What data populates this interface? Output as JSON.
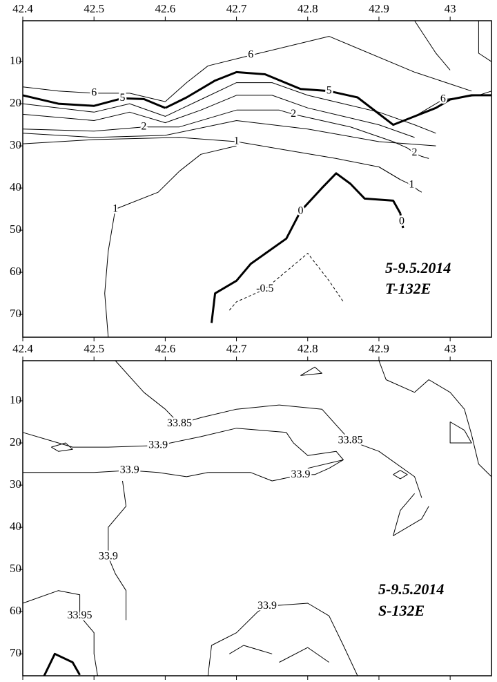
{
  "chart_data": [
    {
      "type": "contour",
      "xlim": [
        42.4,
        43.058
      ],
      "ylim": [
        0.3,
        75.4
      ],
      "xticks": [
        42.4,
        42.5,
        42.6,
        42.7,
        42.8,
        42.9,
        43
      ],
      "yticks": [
        10,
        20,
        30,
        40,
        50,
        60,
        70
      ],
      "color": "#000000",
      "annotations": [
        "5-9.5.2014",
        "T-132E"
      ],
      "contours": [
        {
          "label": "6",
          "x": [
            42.4,
            42.45,
            42.5,
            42.55,
            42.6
          ],
          "y": [
            16,
            17,
            17.5,
            17.5,
            19.5
          ]
        },
        {
          "label": "6",
          "x": [
            42.6,
            42.63,
            42.66,
            42.72,
            42.83,
            42.95,
            43.03
          ],
          "y": [
            19.5,
            15,
            11,
            8.5,
            4,
            12.5,
            17
          ]
        },
        {
          "label": "6",
          "x": [
            42.95,
            42.99,
            43.04,
            43.058
          ],
          "y": [
            23,
            19,
            18,
            17
          ]
        },
        {
          "label": "5",
          "style": "bold",
          "x": [
            42.4,
            42.45,
            42.5,
            42.54,
            42.57,
            42.59,
            42.6
          ],
          "y": [
            18,
            20,
            20.5,
            18.7,
            18.9,
            20.3,
            21
          ]
        },
        {
          "label": "5",
          "style": "bold",
          "x": [
            42.6,
            42.63,
            42.67,
            42.7,
            42.74,
            42.79,
            42.83,
            42.87,
            42.92,
            42.95,
            42.98,
            43.0,
            43.03,
            43.058
          ],
          "y": [
            21,
            18.5,
            14.5,
            12.5,
            13,
            16.5,
            17,
            18.5,
            25,
            23,
            21,
            19,
            18,
            18
          ]
        },
        {
          "x": [
            42.4,
            42.5,
            42.55,
            42.6,
            42.65,
            42.7,
            42.75,
            42.8,
            42.85,
            42.9,
            42.95,
            42.98
          ],
          "y": [
            20,
            22,
            20,
            23,
            19,
            15,
            15,
            18,
            20,
            22,
            25,
            27
          ]
        },
        {
          "x": [
            42.4,
            42.5,
            42.55,
            42.6,
            42.65,
            42.7,
            42.75,
            42.8,
            42.85,
            42.9,
            42.95
          ],
          "y": [
            22.5,
            24,
            22,
            24.5,
            21.5,
            18,
            18,
            21,
            23,
            25,
            28
          ]
        },
        {
          "label": "2",
          "x": [
            42.4,
            42.5,
            42.57,
            42.62,
            42.7
          ],
          "y": [
            26,
            26.5,
            25.5,
            25.5,
            21.5
          ]
        },
        {
          "label": "2",
          "x": [
            42.7,
            42.76,
            42.78,
            42.86,
            42.92
          ],
          "y": [
            21.5,
            21.5,
            22.5,
            25.5,
            29
          ]
        },
        {
          "label": "2",
          "x": [
            42.92,
            42.94,
            42.95,
            42.96,
            42.97
          ],
          "y": [
            29,
            30.5,
            31.7,
            32.5,
            33
          ]
        },
        {
          "x": [
            42.4,
            42.5,
            42.6,
            42.7,
            42.8,
            42.9,
            42.98
          ],
          "y": [
            27,
            28,
            27.5,
            24,
            26,
            29,
            30
          ]
        },
        {
          "label": "1",
          "x": [
            42.4,
            42.5,
            42.62,
            42.7,
            42.77,
            42.84,
            42.9,
            42.93
          ],
          "y": [
            29.5,
            28.5,
            28,
            29,
            31,
            33,
            35,
            38
          ]
        },
        {
          "label": "1",
          "x": [
            42.9,
            42.93,
            42.946,
            42.955,
            42.96
          ],
          "y": [
            35,
            38,
            39.3,
            40.5,
            41
          ]
        },
        {
          "label": "1",
          "x": [
            42.52,
            42.515,
            42.52,
            42.53,
            42.59,
            42.62,
            42.65,
            42.7
          ],
          "y": [
            75.4,
            65,
            55,
            45,
            41,
            36,
            32,
            30
          ]
        },
        {
          "label": "0",
          "style": "bold",
          "x": [
            42.665,
            42.67,
            42.7,
            42.72,
            42.77,
            42.79,
            42.82,
            42.84,
            42.86,
            42.88,
            42.92,
            42.93
          ],
          "y": [
            72,
            65,
            62,
            58,
            52,
            45.5,
            40,
            36.5,
            39,
            42.5,
            43,
            46
          ]
        },
        {
          "label": "0",
          "style": "bold",
          "x": [
            42.93,
            42.932,
            42.934
          ],
          "y": [
            46,
            48,
            49.5
          ]
        },
        {
          "label": "-0.5",
          "style": "dashed",
          "x": [
            42.69,
            42.7,
            42.74,
            42.8,
            42.83,
            42.85
          ],
          "y": [
            69,
            67,
            64,
            55.5,
            62,
            67
          ]
        },
        {
          "x": [
            42.95,
            42.98,
            43.0
          ],
          "y": [
            0.3,
            8,
            12
          ]
        },
        {
          "x": [
            43.04,
            43.04,
            43.058
          ],
          "y": [
            0.3,
            8,
            10
          ]
        }
      ]
    },
    {
      "type": "contour",
      "xlim": [
        42.4,
        43.058
      ],
      "ylim": [
        0.5,
        75.2
      ],
      "xticks": [
        42.4,
        42.5,
        42.6,
        42.7,
        42.8,
        42.9,
        43
      ],
      "yticks": [
        10,
        20,
        30,
        40,
        50,
        60,
        70
      ],
      "color": "#000000",
      "annotations": [
        "5-9.5.2014",
        "S-132E"
      ],
      "contours": [
        {
          "label": "33.85",
          "x": [
            42.53,
            42.57,
            42.6,
            42.62,
            42.65,
            42.7,
            42.76
          ],
          "y": [
            0.5,
            8,
            12,
            15.5,
            14,
            12,
            11
          ]
        },
        {
          "label": "33.85",
          "x": [
            42.76,
            42.82,
            42.86,
            42.9,
            42.95,
            42.96
          ],
          "y": [
            11,
            12,
            19.5,
            22,
            28,
            33
          ]
        },
        {
          "label": "33.9",
          "x": [
            42.4,
            42.47,
            42.52,
            42.59,
            42.65,
            42.7,
            42.77
          ],
          "y": [
            17.5,
            21,
            21,
            20.6,
            18.5,
            16.5,
            17.5
          ]
        },
        {
          "x": [
            42.77,
            42.78,
            42.8,
            42.84,
            42.85,
            42.8
          ],
          "y": [
            17.5,
            20,
            23,
            22,
            24,
            26
          ]
        },
        {
          "label": "33.9",
          "x": [
            42.4,
            42.5,
            42.55,
            42.59,
            42.63,
            42.66
          ],
          "y": [
            27,
            27,
            26.5,
            27,
            28,
            27
          ]
        },
        {
          "label": "33.9",
          "x": [
            42.66,
            42.72,
            42.75,
            42.79,
            42.81,
            42.83,
            42.85
          ],
          "y": [
            27,
            27,
            29,
            27.6,
            27.5,
            26,
            24
          ]
        },
        {
          "label": "33.9",
          "x": [
            42.54,
            42.545,
            42.52,
            42.52,
            42.53,
            42.545,
            42.545
          ],
          "y": [
            29,
            35,
            40,
            47,
            51,
            55,
            62
          ]
        },
        {
          "label": "33.95",
          "x": [
            42.4,
            42.45,
            42.48,
            42.48,
            42.5,
            42.5,
            42.505
          ],
          "y": [
            58,
            55,
            56,
            61,
            65,
            70,
            75.2
          ]
        },
        {
          "style": "bold",
          "x": [
            42.43,
            42.445,
            42.47,
            42.48
          ],
          "y": [
            75.2,
            70,
            72,
            75
          ]
        },
        {
          "label": "33.9",
          "x": [
            42.66,
            42.665,
            42.7,
            42.73,
            42.743,
            42.8,
            42.83,
            42.85,
            42.87
          ],
          "y": [
            75.2,
            68,
            65,
            60,
            58.7,
            58,
            61,
            68,
            75.2
          ]
        },
        {
          "x": [
            42.69,
            42.71,
            42.75
          ],
          "y": [
            70,
            68,
            70
          ]
        },
        {
          "x": [
            42.76,
            42.8,
            42.83
          ],
          "y": [
            72,
            68.5,
            72
          ]
        },
        {
          "x": [
            42.9,
            42.91,
            42.95,
            42.97,
            43.0,
            43.02,
            43.03,
            43.04,
            43.058
          ],
          "y": [
            0.5,
            5,
            8,
            5,
            8,
            12,
            18,
            25,
            28
          ]
        },
        {
          "x": [
            42.95,
            42.93,
            42.92,
            42.96,
            42.97
          ],
          "y": [
            32,
            36,
            42,
            38,
            35
          ]
        },
        {
          "x": [
            43.0,
            43.02,
            43.03,
            43.0,
            43.0
          ],
          "y": [
            15,
            17,
            20,
            20,
            15
          ]
        },
        {
          "x": [
            42.79,
            42.81,
            42.82,
            42.79
          ],
          "y": [
            4,
            2,
            3.5,
            4
          ]
        },
        {
          "x": [
            42.44,
            42.46,
            42.47,
            42.45,
            42.44
          ],
          "y": [
            21,
            20,
            21.5,
            22,
            21
          ]
        },
        {
          "x": [
            42.92,
            42.93,
            42.94,
            42.93,
            42.92
          ],
          "y": [
            27.5,
            26.5,
            27.5,
            28.5,
            27.5
          ]
        }
      ]
    }
  ]
}
